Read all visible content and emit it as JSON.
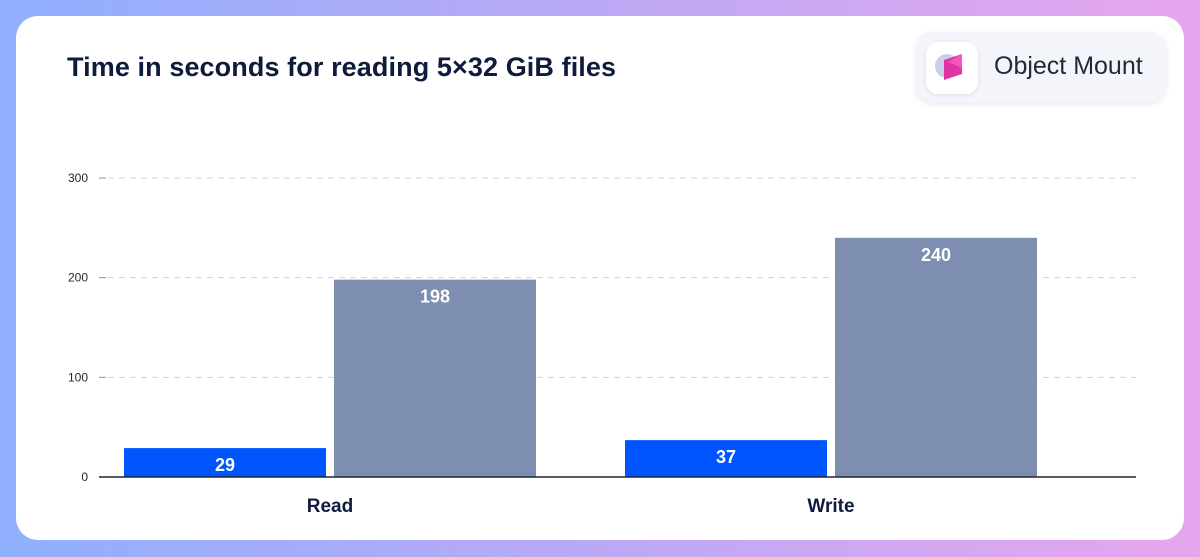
{
  "brand": {
    "name": "Object Mount",
    "logo_icon": "object-mount-logo-icon"
  },
  "chart_data": {
    "type": "bar",
    "title": "Time in seconds for reading 5×32 GiB files",
    "categories": [
      "Read",
      "Write"
    ],
    "series": [
      {
        "values": [
          29,
          37
        ],
        "color": "#0055ff"
      },
      {
        "values": [
          198,
          240
        ],
        "color": "#7d8eb1"
      }
    ],
    "ylim": [
      0,
      300
    ],
    "yticks": [
      0,
      100,
      200,
      300
    ],
    "grid": true,
    "xlabel": "",
    "ylabel": ""
  }
}
